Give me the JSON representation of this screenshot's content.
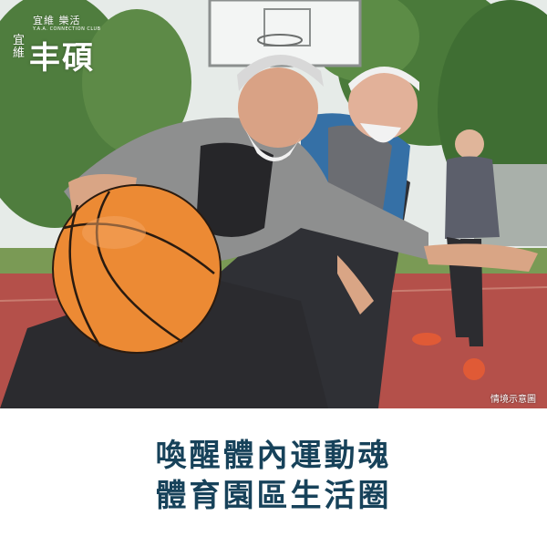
{
  "logo": {
    "top_text": "宜維 樂活",
    "sub_text": "Y.A.A. CONNECTION CLUB",
    "side_text": "宜維",
    "main_text": "丰碩"
  },
  "photo": {
    "caption": "情境示意圖",
    "colors": {
      "court": "#b4504a",
      "ball": "#ec8a34",
      "sky": "#e8ecea",
      "trees": "#4d7a3c"
    }
  },
  "headline": {
    "line1": "喚醒體內運動魂",
    "line2": "體育園區生活圈",
    "color": "#17425a"
  }
}
